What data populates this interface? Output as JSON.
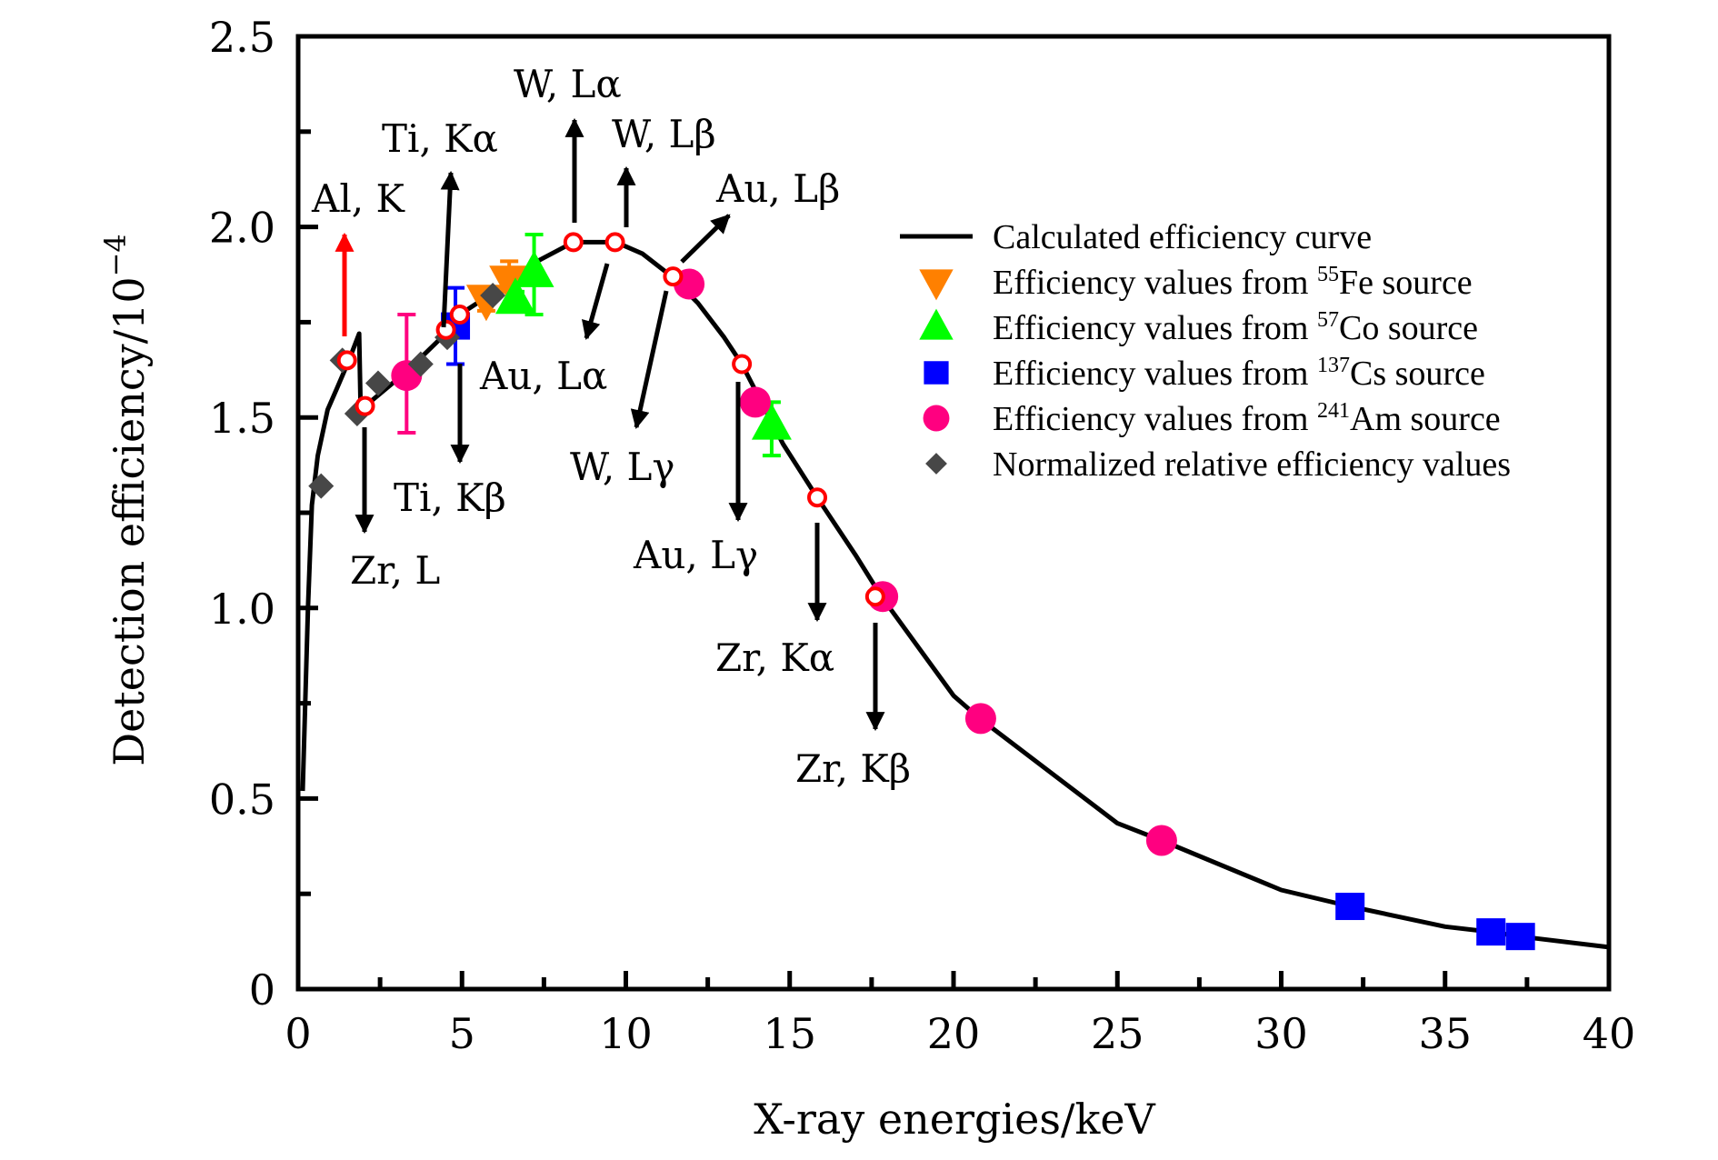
{
  "chart_data": {
    "type": "scatter",
    "title": "",
    "xlabel": "X-ray energies/keV",
    "ylabel": "Detection efficiency/10",
    "ylabel_exponent": "−4",
    "xlim": [
      0,
      40
    ],
    "ylim": [
      0,
      2.5
    ],
    "x_ticks": [
      0,
      5,
      10,
      15,
      20,
      25,
      30,
      35,
      40
    ],
    "x_tick_labels": [
      "0",
      "5",
      "10",
      "15",
      "20",
      "25",
      "30",
      "35",
      "40"
    ],
    "x_minor_ticks": [
      2.5,
      7.5,
      12.5,
      17.5,
      22.5,
      27.5,
      32.5,
      37.5
    ],
    "y_ticks": [
      0,
      0.5,
      1.0,
      1.5,
      2.0,
      2.5
    ],
    "y_tick_labels": [
      "0",
      "0.5",
      "1.0",
      "1.5",
      "2.0",
      "2.5"
    ],
    "y_minor_ticks": [
      0.25,
      0.75,
      1.25,
      1.75,
      2.25
    ],
    "grid": false,
    "legend_position": "top-right",
    "curve": {
      "name": "Calculated efficiency curve",
      "color": "#000000",
      "x": [
        0.14,
        0.3,
        0.42,
        0.6,
        0.9,
        1.2,
        1.55,
        1.86,
        1.9,
        2.05,
        3.3,
        4.5,
        4.55,
        4.93,
        6.0,
        7.3,
        8.4,
        9.7,
        10.5,
        11.4,
        12.2,
        13.0,
        13.54,
        14.2,
        14.8,
        15.84,
        17.0,
        17.8,
        20.0,
        20.8,
        25.0,
        26.35,
        30.0,
        32.1,
        35.0,
        36.4,
        37.3,
        40.0
      ],
      "y": [
        0.52,
        1.0,
        1.27,
        1.4,
        1.52,
        1.58,
        1.65,
        1.72,
        1.55,
        1.53,
        1.62,
        1.72,
        1.73,
        1.77,
        1.83,
        1.91,
        1.96,
        1.96,
        1.93,
        1.87,
        1.8,
        1.71,
        1.64,
        1.53,
        1.43,
        1.29,
        1.14,
        1.03,
        0.77,
        0.71,
        0.435,
        0.39,
        0.26,
        0.217,
        0.164,
        0.15,
        0.138,
        0.11
      ]
    },
    "calculated_markers": {
      "name": "Characteristic line points",
      "color": "#ff0000",
      "x": [
        1.49,
        2.04,
        4.51,
        4.93,
        8.4,
        9.67,
        11.44,
        13.54,
        15.84,
        17.61
      ],
      "y": [
        1.65,
        1.53,
        1.73,
        1.77,
        1.96,
        1.96,
        1.87,
        1.64,
        1.29,
        1.03
      ]
    },
    "series": [
      {
        "name": "Efficiency values from 55Fe source",
        "label_prefix": "Efficiency values from ",
        "isotope_mass": "55",
        "isotope": "Fe",
        "label_suffix": " source",
        "marker": "triangle-down",
        "color": "#ff8000",
        "points": [
          {
            "x": 5.74,
            "y": 1.81,
            "err_low": 1.78,
            "err_high": 1.84
          },
          {
            "x": 6.44,
            "y": 1.86,
            "err_low": 1.83,
            "err_high": 1.91
          }
        ]
      },
      {
        "name": "Efficiency values from 57Co source",
        "label_prefix": "Efficiency values from ",
        "isotope_mass": "57",
        "isotope": "Co",
        "label_suffix": " source",
        "marker": "triangle-up",
        "color": "#00ff00",
        "points": [
          {
            "x": 6.63,
            "y": 1.81,
            "err_low": 1.79,
            "err_high": 1.83
          },
          {
            "x": 7.2,
            "y": 1.88,
            "err_low": 1.77,
            "err_high": 1.98
          },
          {
            "x": 14.45,
            "y": 1.48,
            "err_low": 1.4,
            "err_high": 1.54
          }
        ]
      },
      {
        "name": "Efficiency values from 137Cs source",
        "label_prefix": "Efficiency values from ",
        "isotope_mass": "137",
        "isotope": "Cs",
        "label_suffix": " source",
        "marker": "square",
        "color": "#0000ff",
        "points": [
          {
            "x": 4.8,
            "y": 1.74,
            "err_low": 1.64,
            "err_high": 1.84
          },
          {
            "x": 32.1,
            "y": 0.217
          },
          {
            "x": 36.4,
            "y": 0.15
          },
          {
            "x": 37.3,
            "y": 0.138
          }
        ]
      },
      {
        "name": "Efficiency values from 241Am source",
        "label_prefix": "Efficiency values from ",
        "isotope_mass": "241",
        "isotope": "Am",
        "label_suffix": " source",
        "marker": "circle",
        "color": "#ff0080",
        "points": [
          {
            "x": 3.31,
            "y": 1.61,
            "err_low": 1.46,
            "err_high": 1.77
          },
          {
            "x": 11.93,
            "y": 1.85
          },
          {
            "x": 13.95,
            "y": 1.54
          },
          {
            "x": 17.84,
            "y": 1.03
          },
          {
            "x": 20.83,
            "y": 0.71
          },
          {
            "x": 26.35,
            "y": 0.39
          }
        ]
      },
      {
        "name": "Normalized relative efficiency values",
        "label_prefix": "Normalized relative efficiency values",
        "isotope_mass": "",
        "isotope": "",
        "label_suffix": "",
        "marker": "diamond",
        "color": "#474747",
        "points": [
          {
            "x": 0.7,
            "y": 1.32
          },
          {
            "x": 1.35,
            "y": 1.65
          },
          {
            "x": 1.8,
            "y": 1.51
          },
          {
            "x": 2.44,
            "y": 1.59
          },
          {
            "x": 3.74,
            "y": 1.64
          },
          {
            "x": 4.55,
            "y": 1.71
          },
          {
            "x": 5.94,
            "y": 1.82
          }
        ]
      }
    ],
    "annotations": [
      {
        "label": "Al, K",
        "x": 1.49,
        "y": 1.65,
        "arrow_color": "#ff0000",
        "direction": "up"
      },
      {
        "label": "Zr, L",
        "x": 2.04,
        "y": 1.53,
        "arrow_color": "#000000",
        "direction": "down"
      },
      {
        "label": "Ti, Kα",
        "x": 4.51,
        "y": 1.73,
        "arrow_color": "#000000",
        "direction": "up"
      },
      {
        "label": "Ti, Kβ",
        "x": 4.93,
        "y": 1.77,
        "arrow_color": "#000000",
        "direction": "down"
      },
      {
        "label": "W, Lα",
        "x": 8.4,
        "y": 1.96,
        "arrow_color": "#000000",
        "direction": "up"
      },
      {
        "label": "W, Lβ",
        "x": 9.67,
        "y": 1.96,
        "arrow_color": "#000000",
        "direction": "up"
      },
      {
        "label": "Au, Lα",
        "x": 9.7,
        "y": 1.96,
        "arrow_color": "#000000",
        "direction": "down-left"
      },
      {
        "label": "Au, Lβ",
        "x": 11.44,
        "y": 1.87,
        "arrow_color": "#000000",
        "direction": "up-right"
      },
      {
        "label": "W, Lγ",
        "x": 11.44,
        "y": 1.87,
        "arrow_color": "#000000",
        "direction": "down-left"
      },
      {
        "label": "Au, Lγ",
        "x": 13.54,
        "y": 1.64,
        "arrow_color": "#000000",
        "direction": "down"
      },
      {
        "label": "Zr, Kα",
        "x": 15.84,
        "y": 1.29,
        "arrow_color": "#000000",
        "direction": "down"
      },
      {
        "label": "Zr, Kβ",
        "x": 17.61,
        "y": 1.03,
        "arrow_color": "#000000",
        "direction": "down"
      }
    ],
    "legend": [
      {
        "marker": "line",
        "color": "#000000",
        "prefix": "Calculated efficiency curve",
        "sup": "",
        "suffix": ""
      },
      {
        "marker": "triangle-down",
        "color": "#ff8000",
        "prefix": "Efficiency values from ",
        "sup": "55",
        "suffix": "Fe source"
      },
      {
        "marker": "triangle-up",
        "color": "#00ff00",
        "prefix": "Efficiency values from ",
        "sup": "57",
        "suffix": "Co source"
      },
      {
        "marker": "square",
        "color": "#0000ff",
        "prefix": "Efficiency values from ",
        "sup": "137",
        "suffix": "Cs source"
      },
      {
        "marker": "circle",
        "color": "#ff0080",
        "prefix": "Efficiency values from ",
        "sup": "241",
        "suffix": "Am source"
      },
      {
        "marker": "diamond",
        "color": "#474747",
        "prefix": "Normalized relative efficiency values",
        "sup": "",
        "suffix": ""
      }
    ]
  }
}
